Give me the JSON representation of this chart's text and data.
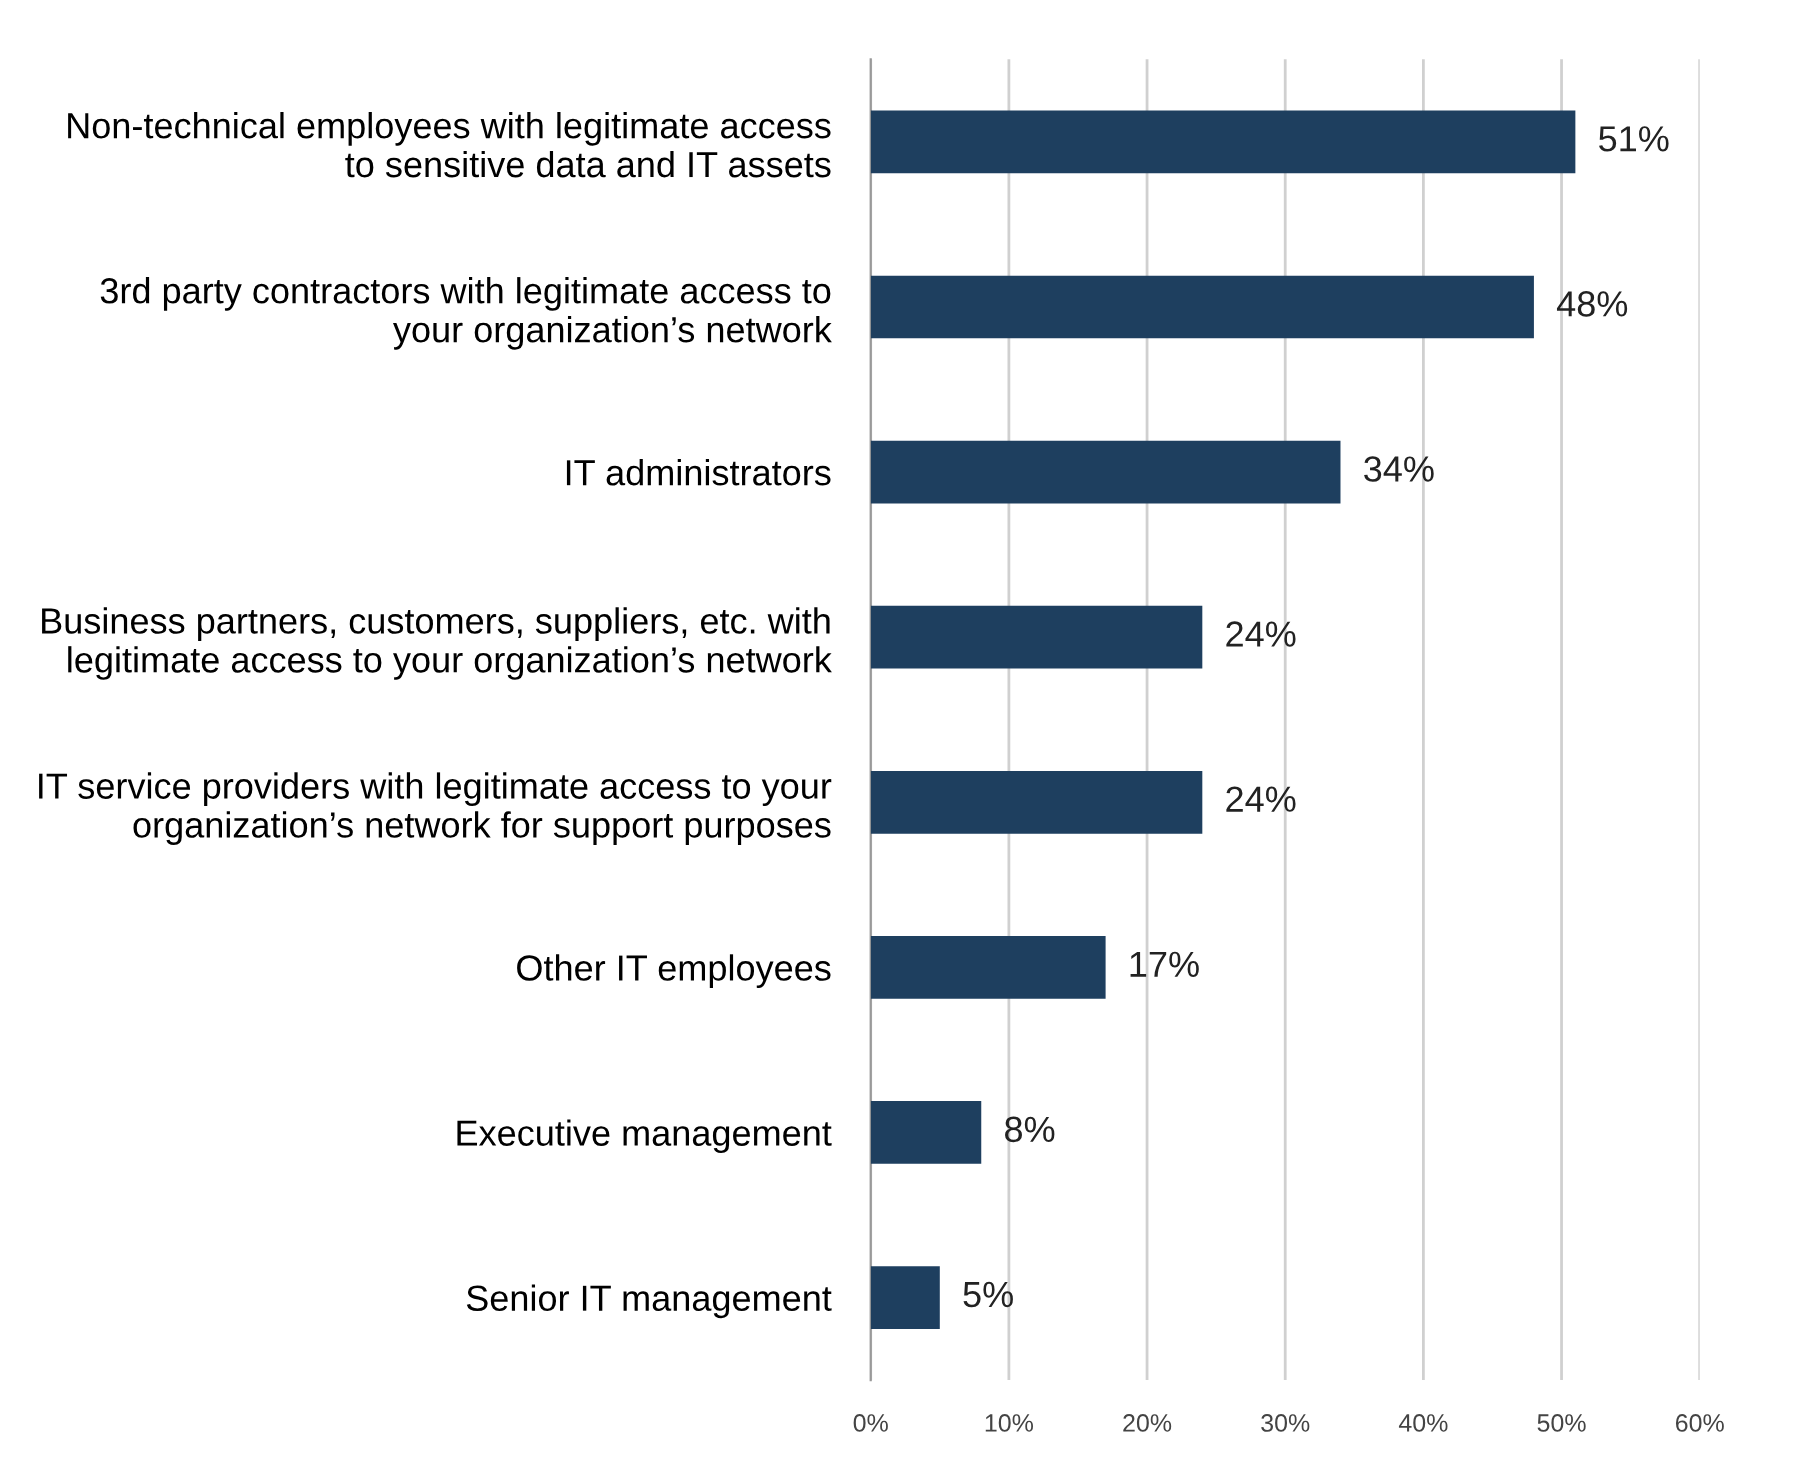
{
  "chart_data": {
    "type": "bar",
    "orientation": "horizontal",
    "categories": [
      "Non-technical employees with legitimate access\nto sensitive data and IT assets",
      "3rd party contractors with legitimate access to\nyour organization’s network",
      "IT administrators",
      "Business partners, customers, suppliers, etc. with\nlegitimate access to your organization’s network",
      "IT service providers with legitimate access to your\norganization’s network for support purposes",
      "Other IT employees",
      "Executive management",
      "Senior IT management"
    ],
    "values": [
      51,
      48,
      34,
      24,
      24,
      17,
      8,
      5
    ],
    "value_labels": [
      "51%",
      "48%",
      "34%",
      "24%",
      "24%",
      "17%",
      "8%",
      "5%"
    ],
    "color": "#1e3f5f",
    "xlim": [
      0,
      60
    ],
    "xticks": [
      {
        "value": 0,
        "label": "0%"
      },
      {
        "value": 10,
        "label": "10%"
      },
      {
        "value": 20,
        "label": "20%"
      },
      {
        "value": 30,
        "label": "30%"
      },
      {
        "value": 40,
        "label": "40%"
      },
      {
        "value": 50,
        "label": "50%"
      },
      {
        "value": 60,
        "label": "60%"
      }
    ],
    "grid": "x",
    "legend": false
  }
}
